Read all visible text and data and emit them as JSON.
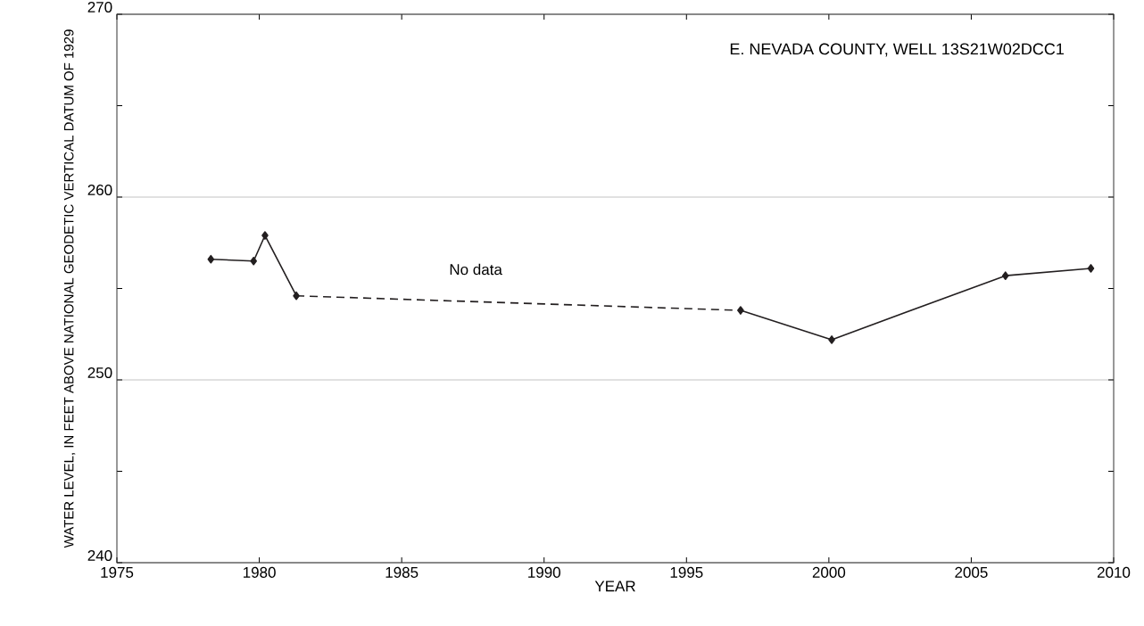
{
  "chart_data": {
    "type": "line",
    "xlabel": "YEAR",
    "ylabel": "WATER LEVEL, IN FEET ABOVE NATIONAL GEODETIC VERTICAL DATUM OF 1929",
    "annotations": [
      "E. NEVADA COUNTY, WELL 13S21W02DCC1",
      "No data"
    ],
    "marker": "diamond",
    "series": [
      {
        "color": "#231f20",
        "line_style": "solid",
        "x": [
          1978.3,
          1979.8,
          1980.2,
          1981.3
        ],
        "values": [
          256.6,
          256.5,
          257.9,
          254.6
        ]
      },
      {
        "color": "#231f20",
        "line_style": "dashed",
        "x": [
          1981.3,
          1996.9
        ],
        "values": [
          254.6,
          253.8
        ]
      },
      {
        "color": "#231f20",
        "line_style": "solid",
        "x": [
          1996.9,
          2000.1,
          2006.2,
          2009.2
        ],
        "values": [
          253.8,
          252.2,
          255.7,
          256.1
        ]
      }
    ],
    "xlim": [
      1975,
      2010
    ],
    "ylim": [
      240,
      270
    ],
    "xticks": [
      1975,
      1980,
      1985,
      1990,
      1995,
      2000,
      2005,
      2010
    ],
    "yticks": [
      240,
      {
        "value": 245,
        "label": null
      },
      250,
      {
        "value": 255,
        "label": null
      },
      260,
      {
        "value": 265,
        "label": null
      },
      270
    ],
    "grid": "y"
  }
}
